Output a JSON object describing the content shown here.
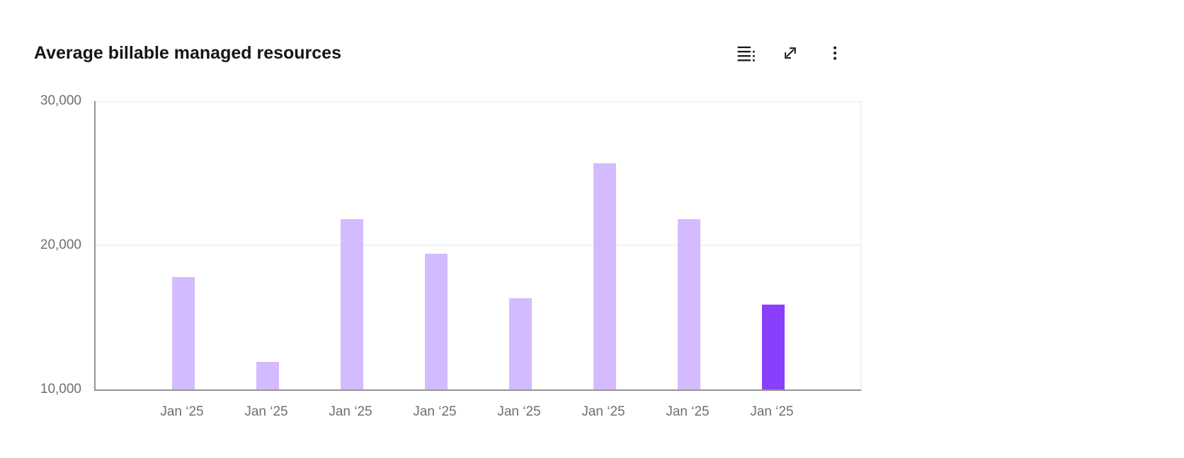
{
  "header": {
    "title": "Average billable managed resources",
    "toolbar": {
      "buttons": [
        {
          "icon": "data-table-icon"
        },
        {
          "icon": "maximize-icon"
        },
        {
          "icon": "overflow-menu-icon"
        }
      ]
    }
  },
  "chart_data": {
    "type": "bar",
    "title": "Average billable managed resources",
    "categories": [
      "Jan ‘25",
      "Jan ‘25",
      "Jan ‘25",
      "Jan ‘25",
      "Jan ‘25",
      "Jan ‘25",
      "Jan ‘25",
      "Jan ‘25"
    ],
    "values": [
      17800,
      11900,
      21800,
      19400,
      16300,
      25700,
      21800,
      15900
    ],
    "xlabel": "",
    "ylabel": "",
    "ylim": [
      10000,
      30000
    ],
    "yticks": [
      10000,
      20000,
      30000
    ],
    "ytick_labels": [
      "10,000",
      "20,000",
      "30,000"
    ],
    "grid": "horizontal",
    "legend": "none",
    "highlight_index": 7
  },
  "colors": {
    "background": "#ffffff",
    "title_text": "#161616",
    "tick_text": "#6f6f6f",
    "axis": "#949494",
    "grid": "#f2f2f2",
    "bar": "#d4bbff",
    "bar_highlight": "#8a3ffc",
    "icon": "#161616"
  }
}
